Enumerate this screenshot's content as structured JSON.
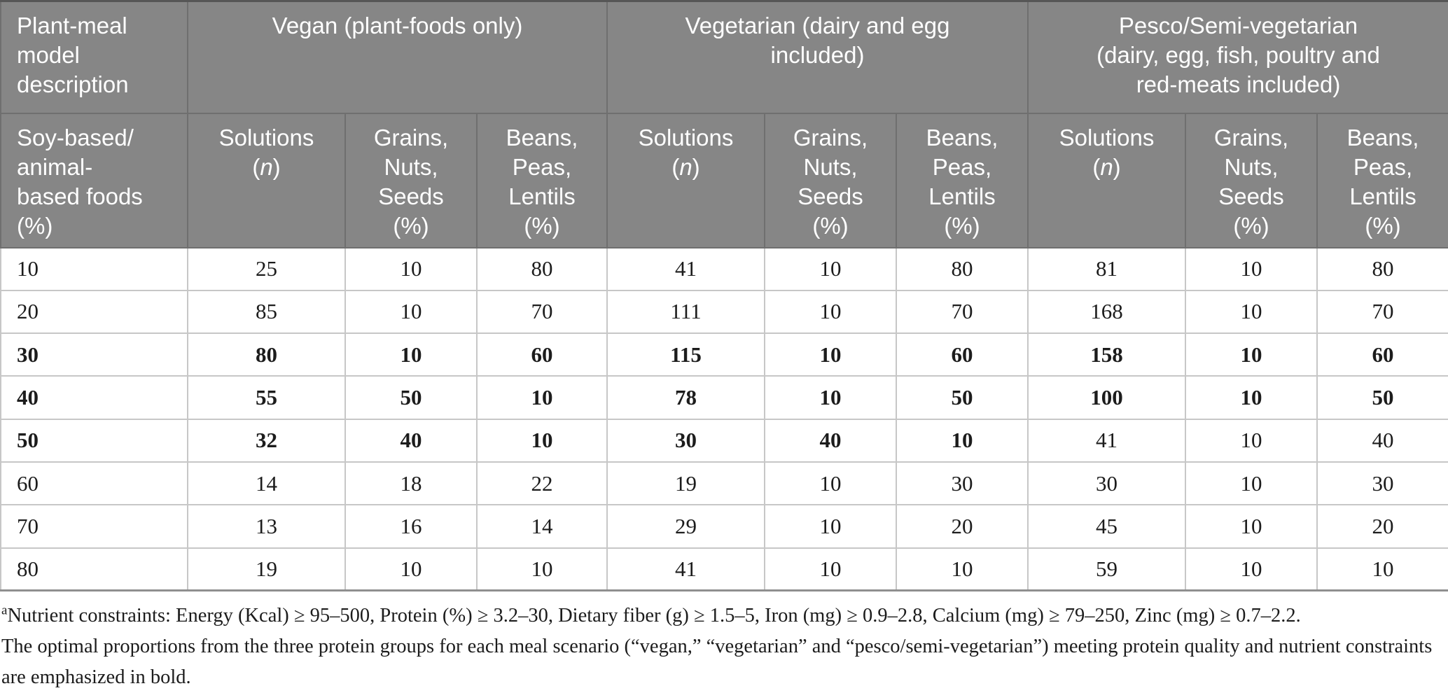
{
  "colors": {
    "page_bg": "#ffffff",
    "header_bg": "#868686",
    "header_divider": "#6f6f6f",
    "header_text": "#ffffff",
    "table_top_border": "#565656",
    "table_bottom_border": "#8f8f8f",
    "body_border": "#c7c7c7",
    "body_text": "#1c1c1c"
  },
  "table": {
    "corner_header": "Plant-meal\nmodel\ndescription",
    "row_header": "Soy-based/\nanimal-\nbased foods\n(%)",
    "groups": [
      {
        "label": "Vegan (plant-foods only)"
      },
      {
        "label": "Vegetarian (dairy and egg\nincluded)"
      },
      {
        "label": "Pesco/Semi-vegetarian\n(dairy, egg, fish, poultry and\nred-meats included)"
      }
    ],
    "sub_headers": [
      "Solutions\n(*n*)",
      "Grains,\nNuts,\nSeeds\n(%)",
      "Beans,\nPeas,\nLentils\n(%)"
    ],
    "rows": [
      {
        "cells": [
          {
            "v": "10",
            "b": false
          },
          {
            "v": "25",
            "b": false
          },
          {
            "v": "10",
            "b": false
          },
          {
            "v": "80",
            "b": false
          },
          {
            "v": "41",
            "b": false
          },
          {
            "v": "10",
            "b": false
          },
          {
            "v": "80",
            "b": false
          },
          {
            "v": "81",
            "b": false
          },
          {
            "v": "10",
            "b": false
          },
          {
            "v": "80",
            "b": false
          }
        ]
      },
      {
        "cells": [
          {
            "v": "20",
            "b": false
          },
          {
            "v": "85",
            "b": false
          },
          {
            "v": "10",
            "b": false
          },
          {
            "v": "70",
            "b": false
          },
          {
            "v": "111",
            "b": false
          },
          {
            "v": "10",
            "b": false
          },
          {
            "v": "70",
            "b": false
          },
          {
            "v": "168",
            "b": false
          },
          {
            "v": "10",
            "b": false
          },
          {
            "v": "70",
            "b": false
          }
        ]
      },
      {
        "cells": [
          {
            "v": "30",
            "b": true
          },
          {
            "v": "80",
            "b": true
          },
          {
            "v": "10",
            "b": true
          },
          {
            "v": "60",
            "b": true
          },
          {
            "v": "115",
            "b": true
          },
          {
            "v": "10",
            "b": true
          },
          {
            "v": "60",
            "b": true
          },
          {
            "v": "158",
            "b": true
          },
          {
            "v": "10",
            "b": true
          },
          {
            "v": "60",
            "b": true
          }
        ]
      },
      {
        "cells": [
          {
            "v": "40",
            "b": true
          },
          {
            "v": "55",
            "b": true
          },
          {
            "v": "50",
            "b": true
          },
          {
            "v": "10",
            "b": true
          },
          {
            "v": "78",
            "b": true
          },
          {
            "v": "10",
            "b": true
          },
          {
            "v": "50",
            "b": true
          },
          {
            "v": "100",
            "b": true
          },
          {
            "v": "10",
            "b": true
          },
          {
            "v": "50",
            "b": true
          }
        ]
      },
      {
        "cells": [
          {
            "v": "50",
            "b": true
          },
          {
            "v": "32",
            "b": true
          },
          {
            "v": "40",
            "b": true
          },
          {
            "v": "10",
            "b": true
          },
          {
            "v": "30",
            "b": true
          },
          {
            "v": "40",
            "b": true
          },
          {
            "v": "10",
            "b": true
          },
          {
            "v": "41",
            "b": false
          },
          {
            "v": "10",
            "b": false
          },
          {
            "v": "40",
            "b": false
          }
        ]
      },
      {
        "cells": [
          {
            "v": "60",
            "b": false
          },
          {
            "v": "14",
            "b": false
          },
          {
            "v": "18",
            "b": false
          },
          {
            "v": "22",
            "b": false
          },
          {
            "v": "19",
            "b": false
          },
          {
            "v": "10",
            "b": false
          },
          {
            "v": "30",
            "b": false
          },
          {
            "v": "30",
            "b": false
          },
          {
            "v": "10",
            "b": false
          },
          {
            "v": "30",
            "b": false
          }
        ]
      },
      {
        "cells": [
          {
            "v": "70",
            "b": false
          },
          {
            "v": "13",
            "b": false
          },
          {
            "v": "16",
            "b": false
          },
          {
            "v": "14",
            "b": false
          },
          {
            "v": "29",
            "b": false
          },
          {
            "v": "10",
            "b": false
          },
          {
            "v": "20",
            "b": false
          },
          {
            "v": "45",
            "b": false
          },
          {
            "v": "10",
            "b": false
          },
          {
            "v": "20",
            "b": false
          }
        ]
      },
      {
        "cells": [
          {
            "v": "80",
            "b": false
          },
          {
            "v": "19",
            "b": false
          },
          {
            "v": "10",
            "b": false
          },
          {
            "v": "10",
            "b": false
          },
          {
            "v": "41",
            "b": false
          },
          {
            "v": "10",
            "b": false
          },
          {
            "v": "10",
            "b": false
          },
          {
            "v": "59",
            "b": false
          },
          {
            "v": "10",
            "b": false
          },
          {
            "v": "10",
            "b": false
          }
        ]
      }
    ]
  },
  "notes": {
    "constraints": "^a^Nutrient constraints: Energy (Kcal) ≥ 95–500, Protein (%) ≥ 3.2–30, Dietary fiber (g) ≥ 1.5–5, Iron (mg) ≥ 0.9–2.8, Calcium (mg) ≥ 79–250, Zinc (mg) ≥ 0.7–2.2.",
    "bold_explanation": "The optimal proportions from the three protein groups for each meal scenario (“vegan,” “vegetarian” and “pesco/semi-vegetarian”) meeting protein quality and nutrient constraints are emphasized in bold."
  }
}
